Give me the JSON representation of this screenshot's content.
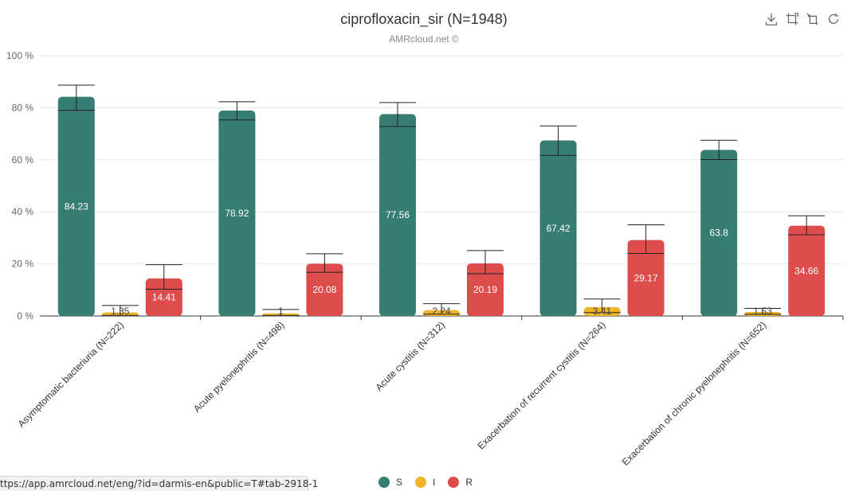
{
  "toolbar": {
    "icons": [
      "download-icon",
      "crop-icon",
      "restore-crop-icon",
      "refresh-icon"
    ]
  },
  "status_bar": {
    "url": "ttps://app.amrcloud.net/eng/?id=darmis-en&public=T#tab-2918-1"
  },
  "colors": {
    "S": "#367d74",
    "I": "#efb52a",
    "R": "#dc4d4c"
  },
  "chart_data": {
    "type": "bar",
    "title": "ciprofloxacin_sir (N=1948)",
    "subtitle": "AMRcloud.net ©",
    "ylim": [
      0,
      100
    ],
    "yticks": [
      0,
      20,
      40,
      60,
      80,
      100
    ],
    "ytick_labels": [
      "0 %",
      "20 %",
      "40 %",
      "60 %",
      "80 %",
      "100 %"
    ],
    "grid": true,
    "legend_position": "bottom-center",
    "categories": [
      "Asymptomatic bacteriuria (N=222)",
      "Acute pyelonephritis (N=498)",
      "Acute cystitis (N=312)",
      "Exacerbation of recurrent cystitis (N=264)",
      "Exacerbation of chronic pyelonephritis (N=652)"
    ],
    "series": [
      {
        "name": "S",
        "values": [
          84.23,
          78.92,
          77.56,
          67.42,
          63.8
        ],
        "labels": [
          "84.23",
          "78.92",
          "77.56",
          "67.42",
          "63.8"
        ],
        "error_low": [
          79,
          75.3,
          72.8,
          61.7,
          60.1
        ],
        "error_high": [
          88.7,
          82.3,
          82,
          73,
          67.5
        ]
      },
      {
        "name": "I",
        "values": [
          1.35,
          1,
          2.24,
          3.41,
          1.53
        ],
        "labels": [
          "1.35",
          "1",
          "2.24",
          "3.41",
          "1.53"
        ],
        "error_low": [
          0.2,
          0.2,
          0.7,
          1.3,
          0.6
        ],
        "error_high": [
          4,
          2.5,
          4.7,
          6.5,
          2.9
        ]
      },
      {
        "name": "R",
        "values": [
          14.41,
          20.08,
          20.19,
          29.17,
          34.66
        ],
        "labels": [
          "14.41",
          "20.08",
          "20.19",
          "29.17",
          "34.66"
        ],
        "error_low": [
          10.3,
          16.8,
          16.2,
          24,
          31.2
        ],
        "error_high": [
          19.7,
          23.9,
          25.1,
          35,
          38.5
        ]
      }
    ]
  }
}
